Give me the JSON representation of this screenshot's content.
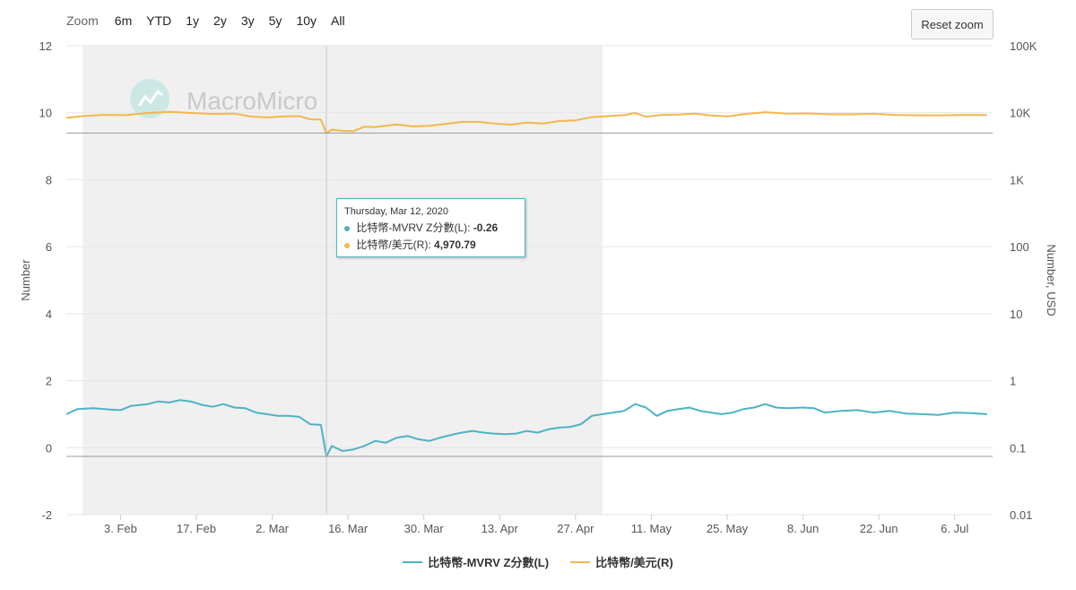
{
  "toolbar": {
    "zoom_label": "Zoom",
    "ranges": [
      "6m",
      "YTD",
      "1y",
      "2y",
      "3y",
      "5y",
      "10y",
      "All"
    ],
    "reset_label": "Reset zoom"
  },
  "watermark": "MacroMicro",
  "tooltip": {
    "date": "Thursday, Mar 12, 2020",
    "rows": [
      {
        "label": "比特幣-MVRV Z分數(L):",
        "value": "-0.26",
        "color": "#4cb3c6"
      },
      {
        "label": "比特幣/美元(R):",
        "value": "4,970.79",
        "color": "#f2b84b"
      }
    ]
  },
  "legend": [
    {
      "label": "比特幣-MVRV Z分數(L)",
      "color": "#4cb3c6"
    },
    {
      "label": "比特幣/美元(R)",
      "color": "#f2b84b"
    }
  ],
  "chart_data": {
    "type": "line",
    "ylabel_left": "Number",
    "ylabel_right": "Number, USD",
    "ylim_left": [
      -2,
      12
    ],
    "left_ticks": [
      "12",
      "10",
      "8",
      "6",
      "4",
      "2",
      "0",
      "-2"
    ],
    "ylim_right_log": [
      0.01,
      100000
    ],
    "right_scale": "log",
    "right_ticks": [
      "100K",
      "10K",
      "1K",
      "100",
      "10",
      "1",
      "0.1",
      "0.01"
    ],
    "x_ticks": [
      "3. Feb",
      "17. Feb",
      "2. Mar",
      "16. Mar",
      "30. Mar",
      "13. Apr",
      "27. Apr",
      "11. May",
      "25. May",
      "8. Jun",
      "22. Jun",
      "6. Jul"
    ],
    "x_range": [
      "2020-01-24",
      "2020-07-13"
    ],
    "shaded_band": [
      "2020-01-27",
      "2020-05-02"
    ],
    "crosshair_date": "2020-03-12",
    "grid": true,
    "legend_position": "bottom",
    "series": [
      {
        "name": "比特幣-MVRV Z分數(L)",
        "axis": "left",
        "color": "#4cb3c6",
        "points": [
          [
            "2020-01-24",
            1.0
          ],
          [
            "2020-01-26",
            1.15
          ],
          [
            "2020-01-29",
            1.18
          ],
          [
            "2020-02-01",
            1.14
          ],
          [
            "2020-02-03",
            1.12
          ],
          [
            "2020-02-05",
            1.25
          ],
          [
            "2020-02-08",
            1.3
          ],
          [
            "2020-02-10",
            1.38
          ],
          [
            "2020-02-12",
            1.35
          ],
          [
            "2020-02-14",
            1.42
          ],
          [
            "2020-02-16",
            1.38
          ],
          [
            "2020-02-18",
            1.28
          ],
          [
            "2020-02-20",
            1.22
          ],
          [
            "2020-02-22",
            1.3
          ],
          [
            "2020-02-24",
            1.2
          ],
          [
            "2020-02-26",
            1.18
          ],
          [
            "2020-02-28",
            1.05
          ],
          [
            "2020-03-01",
            1.0
          ],
          [
            "2020-03-03",
            0.95
          ],
          [
            "2020-03-05",
            0.95
          ],
          [
            "2020-03-07",
            0.92
          ],
          [
            "2020-03-09",
            0.7
          ],
          [
            "2020-03-11",
            0.68
          ],
          [
            "2020-03-12",
            -0.26
          ],
          [
            "2020-03-13",
            0.05
          ],
          [
            "2020-03-15",
            -0.1
          ],
          [
            "2020-03-17",
            -0.05
          ],
          [
            "2020-03-19",
            0.05
          ],
          [
            "2020-03-21",
            0.2
          ],
          [
            "2020-03-23",
            0.15
          ],
          [
            "2020-03-25",
            0.3
          ],
          [
            "2020-03-27",
            0.35
          ],
          [
            "2020-03-29",
            0.25
          ],
          [
            "2020-03-31",
            0.2
          ],
          [
            "2020-04-02",
            0.3
          ],
          [
            "2020-04-04",
            0.38
          ],
          [
            "2020-04-06",
            0.45
          ],
          [
            "2020-04-08",
            0.5
          ],
          [
            "2020-04-10",
            0.45
          ],
          [
            "2020-04-12",
            0.42
          ],
          [
            "2020-04-14",
            0.4
          ],
          [
            "2020-04-16",
            0.42
          ],
          [
            "2020-04-18",
            0.5
          ],
          [
            "2020-04-20",
            0.45
          ],
          [
            "2020-04-22",
            0.55
          ],
          [
            "2020-04-24",
            0.6
          ],
          [
            "2020-04-26",
            0.62
          ],
          [
            "2020-04-28",
            0.7
          ],
          [
            "2020-04-30",
            0.95
          ],
          [
            "2020-05-02",
            1.0
          ],
          [
            "2020-05-04",
            1.05
          ],
          [
            "2020-05-06",
            1.1
          ],
          [
            "2020-05-08",
            1.3
          ],
          [
            "2020-05-10",
            1.2
          ],
          [
            "2020-05-12",
            0.95
          ],
          [
            "2020-05-14",
            1.1
          ],
          [
            "2020-05-16",
            1.15
          ],
          [
            "2020-05-18",
            1.2
          ],
          [
            "2020-05-20",
            1.1
          ],
          [
            "2020-05-22",
            1.05
          ],
          [
            "2020-05-24",
            1.0
          ],
          [
            "2020-05-26",
            1.05
          ],
          [
            "2020-05-28",
            1.15
          ],
          [
            "2020-05-30",
            1.2
          ],
          [
            "2020-06-01",
            1.3
          ],
          [
            "2020-06-03",
            1.2
          ],
          [
            "2020-06-05",
            1.18
          ],
          [
            "2020-06-08",
            1.2
          ],
          [
            "2020-06-10",
            1.18
          ],
          [
            "2020-06-12",
            1.05
          ],
          [
            "2020-06-15",
            1.1
          ],
          [
            "2020-06-18",
            1.12
          ],
          [
            "2020-06-21",
            1.05
          ],
          [
            "2020-06-24",
            1.1
          ],
          [
            "2020-06-27",
            1.02
          ],
          [
            "2020-06-30",
            1.0
          ],
          [
            "2020-07-03",
            0.98
          ],
          [
            "2020-07-06",
            1.05
          ],
          [
            "2020-07-09",
            1.03
          ],
          [
            "2020-07-12",
            1.0
          ]
        ]
      },
      {
        "name": "比特幣/美元(R)",
        "axis": "right",
        "color": "#f2b84b",
        "points": [
          [
            "2020-01-24",
            8400
          ],
          [
            "2020-01-27",
            8900
          ],
          [
            "2020-01-31",
            9300
          ],
          [
            "2020-02-04",
            9200
          ],
          [
            "2020-02-08",
            9900
          ],
          [
            "2020-02-12",
            10300
          ],
          [
            "2020-02-16",
            9900
          ],
          [
            "2020-02-20",
            9600
          ],
          [
            "2020-02-24",
            9700
          ],
          [
            "2020-02-27",
            8800
          ],
          [
            "2020-03-01",
            8500
          ],
          [
            "2020-03-04",
            8800
          ],
          [
            "2020-03-07",
            8900
          ],
          [
            "2020-03-09",
            8000
          ],
          [
            "2020-03-11",
            7900
          ],
          [
            "2020-03-12",
            4970.79
          ],
          [
            "2020-03-13",
            5600
          ],
          [
            "2020-03-15",
            5350
          ],
          [
            "2020-03-17",
            5300
          ],
          [
            "2020-03-19",
            6200
          ],
          [
            "2020-03-21",
            6100
          ],
          [
            "2020-03-23",
            6400
          ],
          [
            "2020-03-25",
            6700
          ],
          [
            "2020-03-28",
            6250
          ],
          [
            "2020-03-31",
            6400
          ],
          [
            "2020-04-03",
            6800
          ],
          [
            "2020-04-06",
            7300
          ],
          [
            "2020-04-09",
            7300
          ],
          [
            "2020-04-12",
            6900
          ],
          [
            "2020-04-15",
            6650
          ],
          [
            "2020-04-18",
            7100
          ],
          [
            "2020-04-21",
            6900
          ],
          [
            "2020-04-24",
            7500
          ],
          [
            "2020-04-27",
            7700
          ],
          [
            "2020-04-30",
            8600
          ],
          [
            "2020-05-03",
            8900
          ],
          [
            "2020-05-06",
            9200
          ],
          [
            "2020-05-08",
            9900
          ],
          [
            "2020-05-10",
            8700
          ],
          [
            "2020-05-13",
            9300
          ],
          [
            "2020-05-16",
            9400
          ],
          [
            "2020-05-19",
            9700
          ],
          [
            "2020-05-22",
            9100
          ],
          [
            "2020-05-25",
            8800
          ],
          [
            "2020-05-28",
            9500
          ],
          [
            "2020-06-01",
            10200
          ],
          [
            "2020-06-05",
            9700
          ],
          [
            "2020-06-09",
            9750
          ],
          [
            "2020-06-13",
            9450
          ],
          [
            "2020-06-17",
            9450
          ],
          [
            "2020-06-21",
            9650
          ],
          [
            "2020-06-25",
            9250
          ],
          [
            "2020-06-29",
            9150
          ],
          [
            "2020-07-03",
            9100
          ],
          [
            "2020-07-07",
            9250
          ],
          [
            "2020-07-12",
            9250
          ]
        ]
      }
    ]
  }
}
